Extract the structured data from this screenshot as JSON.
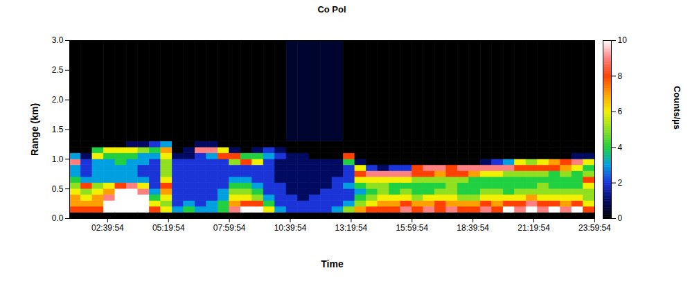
{
  "chart_data": {
    "type": "heatmap",
    "title": "Co Pol",
    "x_label": "Time",
    "y_label": "Range (km)",
    "xlim": [
      1,
      24
    ],
    "xticks": [
      {
        "value": 2.665,
        "label": "02:39:54"
      },
      {
        "value": 5.3317,
        "label": "05:19:54"
      },
      {
        "value": 7.9983,
        "label": "07:59:54"
      },
      {
        "value": 10.665,
        "label": "10:39:54"
      },
      {
        "value": 13.3317,
        "label": "13:19:54"
      },
      {
        "value": 15.9983,
        "label": "15:59:54"
      },
      {
        "value": 18.665,
        "label": "18:39:54"
      },
      {
        "value": 21.3317,
        "label": "21:19:54"
      },
      {
        "value": 23.9983,
        "label": "23:59:54"
      }
    ],
    "ylim": [
      0,
      3
    ],
    "yticks": [
      0,
      0.5,
      1,
      1.5,
      2,
      2.5,
      3
    ],
    "time_bins": [
      1,
      1.5,
      2,
      2.5,
      3,
      3.5,
      4,
      4.5,
      5,
      5.5,
      6,
      6.5,
      7,
      7.5,
      8,
      8.5,
      9,
      9.5,
      10,
      10.5,
      11,
      11.5,
      12,
      12.5,
      13,
      13.5,
      14,
      14.5,
      15,
      15.5,
      16,
      16.5,
      17,
      17.5,
      18,
      18.5,
      19,
      19.5,
      20,
      20.5,
      21,
      21.5,
      22,
      22.5,
      23,
      23.5,
      24
    ],
    "range_bins": [
      0,
      0.1,
      0.2,
      0.3,
      0.4,
      0.5,
      0.6,
      0.7,
      0.8,
      0.9,
      1.0,
      1.1,
      1.2,
      1.3,
      3
    ],
    "values": [
      [
        0,
        8,
        7,
        7,
        6,
        5,
        4,
        3,
        3,
        9,
        3,
        0,
        0,
        0
      ],
      [
        0,
        8,
        7,
        6,
        5,
        8,
        3,
        2,
        2,
        2,
        1,
        0,
        0,
        0
      ],
      [
        0,
        8,
        7,
        7,
        6,
        5,
        3,
        3,
        3,
        3,
        6,
        4,
        0,
        0
      ],
      [
        0,
        10,
        10,
        9,
        7,
        6,
        3,
        3,
        3,
        3,
        4,
        6,
        0,
        0
      ],
      [
        0,
        10,
        10,
        10,
        10,
        8,
        3,
        3,
        3,
        4,
        4,
        6,
        0,
        0
      ],
      [
        0,
        10,
        10,
        10,
        10,
        9,
        3,
        3,
        3,
        3,
        4,
        6,
        1,
        0
      ],
      [
        0,
        10,
        10,
        10,
        9,
        6,
        3,
        2,
        2,
        3,
        3,
        5,
        1,
        0
      ],
      [
        0,
        8,
        6,
        4,
        3,
        2,
        2,
        2,
        2,
        2,
        3,
        4,
        2,
        0
      ],
      [
        0,
        6,
        5,
        6,
        7,
        8,
        6,
        5,
        5,
        5,
        6,
        7,
        3,
        0
      ],
      [
        0,
        3,
        2,
        2,
        2,
        2,
        2,
        2,
        2,
        2,
        1,
        0,
        0,
        0
      ],
      [
        0,
        4,
        3,
        2,
        2,
        2,
        2,
        2,
        2,
        2,
        1,
        1,
        0,
        0
      ],
      [
        0,
        3,
        2,
        2,
        2,
        2,
        2,
        2,
        2,
        2,
        2,
        9,
        1,
        0
      ],
      [
        0,
        3,
        3,
        2,
        2,
        2,
        2,
        2,
        2,
        2,
        3,
        9,
        1,
        0
      ],
      [
        0,
        4,
        4,
        3,
        3,
        2,
        2,
        2,
        2,
        2,
        8,
        6,
        0,
        0
      ],
      [
        0,
        9,
        7,
        6,
        5,
        4,
        3,
        2,
        2,
        5,
        8,
        1,
        0,
        0
      ],
      [
        0,
        10,
        8,
        6,
        5,
        4,
        3,
        2,
        2,
        8,
        4,
        0,
        0,
        0
      ],
      [
        0,
        10,
        8,
        5,
        4,
        3,
        2,
        2,
        2,
        6,
        4,
        1,
        0,
        0
      ],
      [
        0,
        6,
        4,
        3,
        2,
        2,
        2,
        2,
        2,
        2,
        3,
        2,
        0,
        0
      ],
      [
        0,
        3,
        2,
        2,
        2,
        2,
        1,
        1,
        1,
        1,
        2,
        1,
        0,
        0
      ],
      [
        0,
        2,
        2,
        2,
        1,
        1,
        1,
        1,
        1,
        1,
        1,
        0,
        0,
        0.5
      ],
      [
        0,
        2,
        2,
        1,
        1,
        1,
        1,
        1,
        1,
        1,
        1,
        0,
        0,
        0.5
      ],
      [
        0,
        2,
        2,
        2,
        1,
        1,
        1,
        1,
        1,
        1,
        0,
        0,
        0,
        0.5
      ],
      [
        0,
        2,
        2,
        2,
        2,
        1,
        1,
        1,
        1,
        1,
        0,
        0,
        0,
        0.5
      ],
      [
        0,
        3,
        2,
        2,
        2,
        2,
        2,
        1,
        1,
        1,
        0,
        0,
        0,
        0.5
      ],
      [
        0,
        5,
        3,
        2,
        2,
        3,
        2,
        2,
        2,
        4,
        8,
        0,
        0,
        0
      ],
      [
        0,
        7,
        5,
        4,
        3,
        4,
        6,
        8,
        6,
        1,
        0,
        0,
        0,
        0
      ],
      [
        0,
        8,
        6,
        5,
        4,
        5,
        6,
        9,
        2,
        0,
        0,
        0,
        0,
        0
      ],
      [
        0,
        8,
        7,
        6,
        5,
        5,
        6,
        9,
        1,
        0,
        0,
        0,
        0,
        0
      ],
      [
        0,
        8,
        7,
        6,
        4,
        4,
        6,
        9,
        2,
        0,
        0,
        0,
        0,
        0
      ],
      [
        0,
        9,
        8,
        6,
        5,
        4,
        6,
        9,
        2,
        0,
        0,
        0,
        0,
        0
      ],
      [
        0,
        8,
        7,
        5,
        4,
        4,
        5,
        8,
        8,
        0,
        0,
        0,
        0,
        0
      ],
      [
        0,
        9,
        7,
        6,
        4,
        4,
        5,
        8,
        9,
        0,
        0,
        0,
        0,
        0
      ],
      [
        0,
        8,
        8,
        6,
        5,
        4,
        5,
        7,
        9,
        0,
        0,
        0,
        0,
        0
      ],
      [
        0,
        9,
        7,
        6,
        5,
        5,
        5,
        8,
        8,
        0,
        0,
        0,
        0,
        0
      ],
      [
        0,
        8,
        7,
        5,
        4,
        4,
        5,
        8,
        9,
        0,
        0,
        0,
        0,
        0
      ],
      [
        0,
        8,
        7,
        5,
        4,
        4,
        4,
        7,
        9,
        0,
        0,
        0,
        0,
        0
      ],
      [
        0,
        9,
        8,
        6,
        5,
        4,
        4,
        6,
        9,
        1,
        0,
        0,
        0,
        0
      ],
      [
        0,
        8,
        7,
        6,
        5,
        4,
        4,
        6,
        9,
        2,
        0,
        0,
        0,
        0
      ],
      [
        0,
        10,
        8,
        6,
        4,
        4,
        4,
        5,
        9,
        3,
        0,
        0,
        0,
        0
      ],
      [
        0,
        9,
        8,
        6,
        5,
        4,
        4,
        5,
        8,
        6,
        0,
        0,
        0,
        0
      ],
      [
        0,
        10,
        9,
        7,
        5,
        4,
        4,
        5,
        8,
        5,
        0,
        0,
        0,
        0
      ],
      [
        0,
        9,
        8,
        6,
        5,
        5,
        4,
        5,
        8,
        6,
        0,
        0,
        0,
        0
      ],
      [
        0,
        10,
        8,
        6,
        5,
        4,
        4,
        4,
        8,
        7,
        0,
        0,
        0,
        0
      ],
      [
        0,
        9,
        7,
        6,
        5,
        4,
        4,
        5,
        7,
        8,
        0,
        0,
        0,
        0
      ],
      [
        0,
        10,
        8,
        6,
        5,
        4,
        4,
        4,
        6,
        9,
        1,
        0,
        0,
        0
      ],
      [
        0,
        8,
        6,
        5,
        5,
        6,
        8,
        5,
        4,
        6,
        1,
        0,
        0,
        0
      ]
    ],
    "colorbar_label": "Counts/µs",
    "colorbar_range": [
      0,
      10
    ],
    "colorbar_ticks": [
      0,
      2,
      4,
      6,
      8,
      10
    ]
  }
}
